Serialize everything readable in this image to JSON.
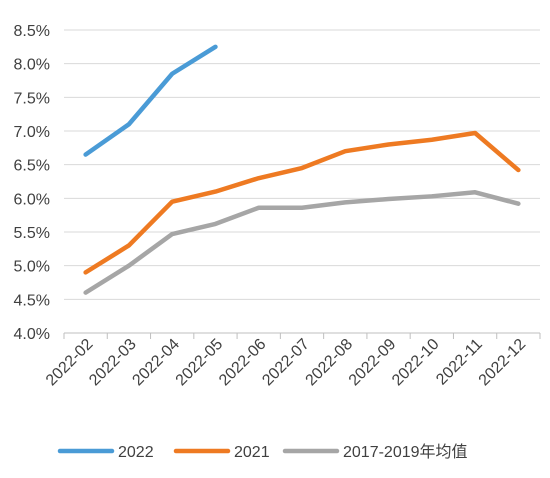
{
  "chart_data": {
    "type": "line",
    "title": "",
    "xlabel": "",
    "ylabel": "",
    "categories": [
      "2022-02",
      "2022-03",
      "2022-04",
      "2022-05",
      "2022-06",
      "2022-07",
      "2022-08",
      "2022-09",
      "2022-10",
      "2022-11",
      "2022-12"
    ],
    "ylim": [
      4.0,
      8.5
    ],
    "yticks": [
      "4.0%",
      "4.5%",
      "5.0%",
      "5.5%",
      "6.0%",
      "6.5%",
      "7.0%",
      "7.5%",
      "8.0%",
      "8.5%"
    ],
    "ytick_values": [
      4.0,
      4.5,
      5.0,
      5.5,
      6.0,
      6.5,
      7.0,
      7.5,
      8.0,
      8.5
    ],
    "grid": true,
    "legend_position": "bottom",
    "series": [
      {
        "name": "2022",
        "color": "#4a9bd6",
        "values": [
          6.65,
          7.1,
          7.85,
          8.25,
          null,
          null,
          null,
          null,
          null,
          null,
          null
        ]
      },
      {
        "name": "2021",
        "color": "#ee7a22",
        "values": [
          4.9,
          5.3,
          5.95,
          6.1,
          6.3,
          6.45,
          6.7,
          6.8,
          6.87,
          6.97,
          6.42
        ]
      },
      {
        "name": "2017-2019年均值",
        "color": "#a6a6a6",
        "values": [
          4.6,
          5.0,
          5.47,
          5.62,
          5.86,
          5.86,
          5.94,
          5.99,
          6.03,
          6.09,
          5.92
        ]
      }
    ]
  }
}
